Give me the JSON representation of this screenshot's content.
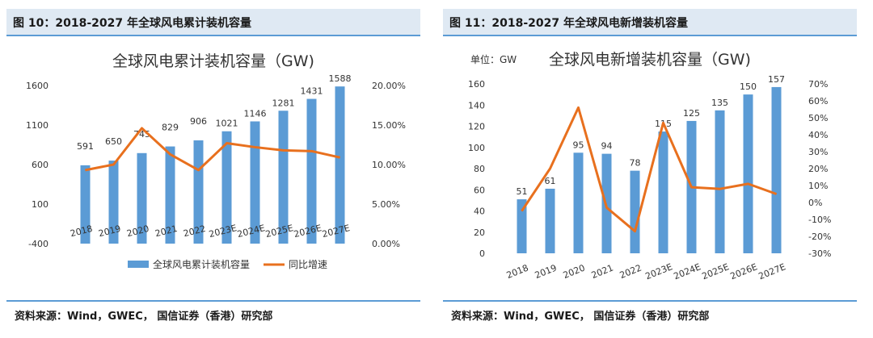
{
  "colors": {
    "bar": "#5b9bd5",
    "line": "#e8701e",
    "header_bg": "#dfe9f3",
    "rule": "#5b9bd5"
  },
  "figures": [
    {
      "label": "图 10：2018-2027 年全球风电累计装机容量",
      "source": "资料来源：Wind，GWEC， 国信证券（香港）研究部"
    },
    {
      "label": "图 11：2018-2027 年全球风电新增装机容量",
      "source": "资料来源：Wind，GWEC， 国信证券（香港）研究部"
    }
  ],
  "chart_data": [
    {
      "type": "bar",
      "title": "全球风电累计装机容量（GW)",
      "categories": [
        "2018",
        "2019",
        "2020",
        "2021",
        "2022",
        "2023E",
        "2024E",
        "2025E",
        "2026E",
        "2027E"
      ],
      "series": [
        {
          "name": "全球风电累计装机容量",
          "kind": "bar",
          "axis": "left",
          "values": [
            591,
            650,
            745,
            829,
            906,
            1021,
            1146,
            1281,
            1431,
            1588
          ]
        },
        {
          "name": "同比增速",
          "kind": "line",
          "axis": "right",
          "values": [
            0.093,
            0.1,
            0.146,
            0.113,
            0.093,
            0.127,
            0.122,
            0.118,
            0.117,
            0.109
          ]
        }
      ],
      "ylim": [
        -400,
        1600
      ],
      "yticks": [
        "1600",
        "1100",
        "600",
        "100",
        "-400"
      ],
      "y2lim": [
        0,
        0.2
      ],
      "y2ticks": [
        "20.00%",
        "15.00%",
        "10.00%",
        "5.00%",
        "0.00%"
      ],
      "legend": [
        "全球风电累计装机容量",
        "同比增速"
      ],
      "legend_position": "bottom",
      "grid": false
    },
    {
      "type": "bar",
      "title": "全球风电新增装机容量（GW)",
      "unit": "单位：GW",
      "categories": [
        "2018",
        "2019",
        "2020",
        "2021",
        "2022",
        "2023E",
        "2024E",
        "2025E",
        "2026E",
        "2027E"
      ],
      "series": [
        {
          "name": "新增装机容量",
          "kind": "bar",
          "axis": "left",
          "values": [
            51,
            61,
            95,
            94,
            78,
            115,
            125,
            135,
            150,
            157
          ]
        },
        {
          "name": "同比增速",
          "kind": "line",
          "axis": "right",
          "values": [
            -0.05,
            0.2,
            0.56,
            -0.03,
            -0.17,
            0.47,
            0.09,
            0.08,
            0.11,
            0.05
          ]
        }
      ],
      "ylim": [
        0,
        160
      ],
      "yticks": [
        "160",
        "140",
        "120",
        "100",
        "80",
        "60",
        "40",
        "20",
        "0"
      ],
      "y2lim": [
        -0.3,
        0.7
      ],
      "y2ticks": [
        "70%",
        "60%",
        "50%",
        "40%",
        "30%",
        "20%",
        "10%",
        "0%",
        "-10%",
        "-20%",
        "-30%"
      ],
      "grid": false
    }
  ]
}
